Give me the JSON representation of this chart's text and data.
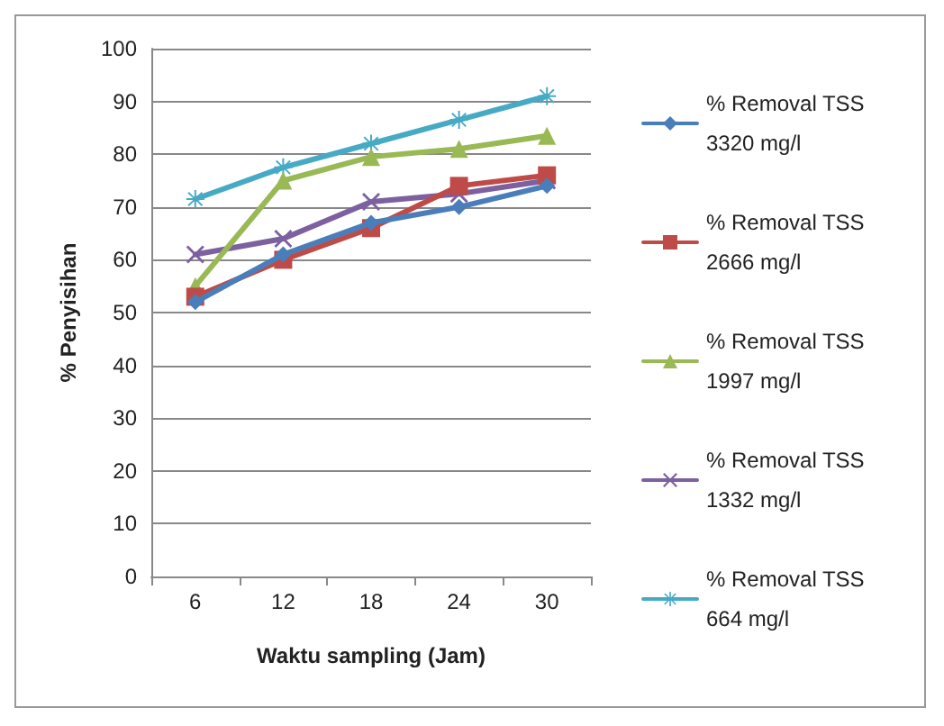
{
  "chart_data": {
    "type": "line",
    "xlabel": "Waktu sampling (Jam)",
    "ylabel": "% Penyisihan",
    "categories": [
      "6",
      "12",
      "18",
      "24",
      "30"
    ],
    "series": [
      {
        "name": "% Removal TSS  3320 mg/l",
        "color": "#4a7ebb",
        "marker": "diamond",
        "values": [
          52,
          61,
          67,
          70,
          74
        ]
      },
      {
        "name": "% Removal TSS  2666 mg/l",
        "color": "#be4b48",
        "marker": "square",
        "values": [
          53,
          60,
          66,
          74,
          76
        ]
      },
      {
        "name": "% Removal TSS  1997 mg/l",
        "color": "#98b954",
        "marker": "triangle",
        "values": [
          55,
          75,
          79.5,
          81,
          83.5
        ]
      },
      {
        "name": "% Removal TSS  1332 mg/l",
        "color": "#7d60a0",
        "marker": "cross",
        "values": [
          61,
          64,
          71,
          72.5,
          75
        ]
      },
      {
        "name": "% Removal TSS  664 mg/l",
        "color": "#46aac5",
        "marker": "star",
        "values": [
          71.5,
          77.5,
          82,
          86.5,
          91
        ]
      }
    ],
    "ylim": [
      0,
      100
    ],
    "yticks": [
      0,
      10,
      20,
      30,
      40,
      50,
      60,
      70,
      80,
      90,
      100
    ],
    "grid": "y",
    "legend": "right",
    "line_style": "solid"
  }
}
